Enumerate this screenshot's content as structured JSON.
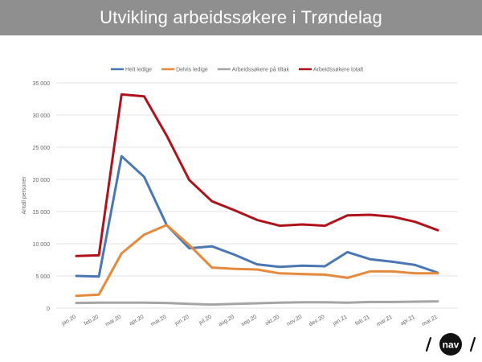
{
  "header": {
    "title": "Utvikling arbeidssøkere i Trøndelag"
  },
  "logo": {
    "text": "nav"
  },
  "chart_data": {
    "type": "line",
    "title": "Utvikling arbeidssøkere i Trøndelag",
    "xlabel": "",
    "ylabel": "Antall personer",
    "ylim": [
      0,
      35000
    ],
    "yticks": [
      0,
      5000,
      10000,
      15000,
      20000,
      25000,
      30000,
      35000
    ],
    "ytick_labels": [
      "0",
      "5 000",
      "10 000",
      "15 000",
      "20 000",
      "25 000",
      "30 000",
      "35 000"
    ],
    "grid": true,
    "legend_position": "top",
    "categories": [
      "jan.20",
      "feb.20",
      "mar.20",
      "apr.20",
      "mai.20",
      "jun.20",
      "jul.20",
      "aug.20",
      "sep.20",
      "okt.20",
      "nov.20",
      "des.20",
      "jan.21",
      "feb.21",
      "mar.21",
      "apr.21",
      "mai.21"
    ],
    "series": [
      {
        "name": "Helt ledige",
        "color": "#4a77b4",
        "values": [
          5000,
          4900,
          23600,
          20400,
          12900,
          9300,
          9600,
          8300,
          6800,
          6400,
          6600,
          6500,
          8700,
          7600,
          7200,
          6700,
          5500
        ]
      },
      {
        "name": "Delvis ledige",
        "color": "#e58a3c",
        "values": [
          1900,
          2100,
          8500,
          11400,
          12900,
          9800,
          6300,
          6100,
          6000,
          5400,
          5300,
          5200,
          4700,
          5700,
          5700,
          5400,
          5400
        ]
      },
      {
        "name": "Arbeidssøkere på tiltak",
        "color": "#a5a5a5",
        "values": [
          800,
          850,
          850,
          850,
          800,
          650,
          550,
          650,
          750,
          850,
          900,
          900,
          850,
          950,
          950,
          1000,
          1050
        ]
      },
      {
        "name": "Arbeidssøkere totalt",
        "color": "#b0121c",
        "values": [
          8100,
          8200,
          33200,
          32900,
          26800,
          19900,
          16600,
          15200,
          13700,
          12800,
          13000,
          12800,
          14400,
          14500,
          14200,
          13400,
          12100
        ]
      }
    ]
  }
}
